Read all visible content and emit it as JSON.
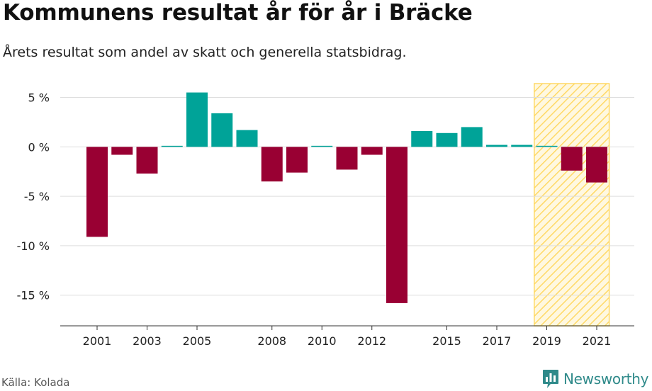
{
  "title": "Kommunens resultat år för år i Bräcke",
  "subtitle": "Årets resultat som andel av skatt och generella statsbidrag.",
  "source": "Källa: Kolada",
  "brand": {
    "name": "Newsworthy",
    "logo_icon": "bar-chart-speech-bubble-icon"
  },
  "colors": {
    "positive": "#00a398",
    "negative": "#990033",
    "highlight": "#ffd966",
    "grid": "#dddddd",
    "axis": "#333333"
  },
  "chart_data": {
    "type": "bar",
    "title": "Kommunens resultat år för år i Bräcke",
    "subtitle": "Årets resultat som andel av skatt och generella statsbidrag.",
    "xlabel": "",
    "ylabel": "",
    "categories": [
      "2001",
      "2002",
      "2003",
      "2004",
      "2005",
      "2006",
      "2007",
      "2008",
      "2009",
      "2010",
      "2011",
      "2012",
      "2013",
      "2014",
      "2015",
      "2016",
      "2017",
      "2018",
      "2019",
      "2020",
      "2021"
    ],
    "values": [
      -9.1,
      -0.8,
      -2.7,
      0.1,
      5.5,
      3.4,
      1.7,
      -3.5,
      -2.6,
      0.05,
      -2.3,
      -0.8,
      -15.8,
      1.6,
      1.4,
      2.0,
      0.2,
      0.2,
      0.1,
      -2.4,
      -3.6
    ],
    "x_tick_labels": [
      "2001",
      "2003",
      "2005",
      "2008",
      "2010",
      "2012",
      "2015",
      "2017",
      "2019",
      "2021"
    ],
    "y_ticks": [
      5,
      0,
      -5,
      -10,
      -15
    ],
    "y_tick_labels": [
      "5 %",
      "0 %",
      "-5 %",
      "-10 %",
      "-15 %"
    ],
    "ylim": [
      -18.1,
      6.4
    ],
    "grid": true,
    "highlight_range": [
      "2019",
      "2021"
    ]
  }
}
